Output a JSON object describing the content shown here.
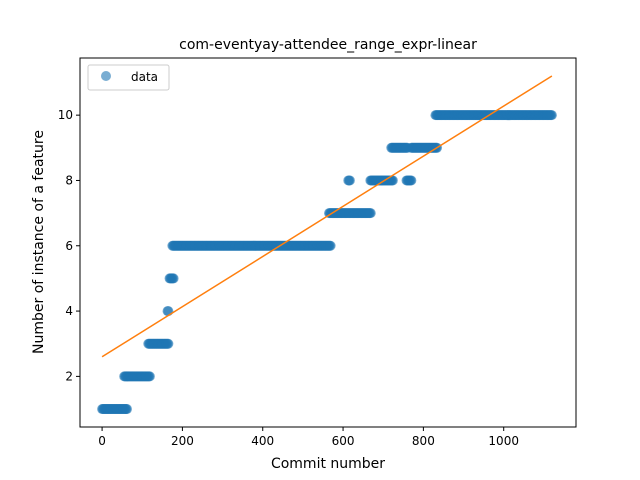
{
  "chart_data": {
    "type": "scatter",
    "title": "com-eventyay-attendee_range_expr-linear",
    "xlabel": "Commit number",
    "ylabel": "Number of instance of a feature",
    "xlim": [
      -55,
      1180
    ],
    "ylim": [
      0.45,
      11.75
    ],
    "xticks": [
      0,
      200,
      400,
      600,
      800,
      1000
    ],
    "yticks": [
      2,
      4,
      6,
      8,
      10
    ],
    "legend": {
      "location": "top-left",
      "entries": [
        "data"
      ]
    },
    "grid": false,
    "colors": {
      "points": "#1f77b4",
      "fit_line": "#ff7f0e"
    },
    "series": [
      {
        "name": "data",
        "kind": "scatter",
        "segments": [
          {
            "x_start": 0,
            "x_end": 62,
            "y": 1
          },
          {
            "x_start": 55,
            "x_end": 120,
            "y": 2
          },
          {
            "x_start": 115,
            "x_end": 165,
            "y": 3
          },
          {
            "x_start": 163,
            "x_end": 166,
            "y": 4
          },
          {
            "x_start": 168,
            "x_end": 178,
            "y": 5
          },
          {
            "x_start": 175,
            "x_end": 570,
            "y": 6
          },
          {
            "x_start": 565,
            "x_end": 670,
            "y": 7
          },
          {
            "x_start": 613,
            "x_end": 617,
            "y": 8
          },
          {
            "x_start": 668,
            "x_end": 725,
            "y": 8
          },
          {
            "x_start": 720,
            "x_end": 760,
            "y": 9
          },
          {
            "x_start": 758,
            "x_end": 770,
            "y": 8
          },
          {
            "x_start": 770,
            "x_end": 835,
            "y": 9
          },
          {
            "x_start": 830,
            "x_end": 1120,
            "y": 10
          }
        ]
      },
      {
        "name": "",
        "kind": "line",
        "x": [
          0,
          1120
        ],
        "y": [
          2.6,
          11.2
        ]
      }
    ]
  }
}
